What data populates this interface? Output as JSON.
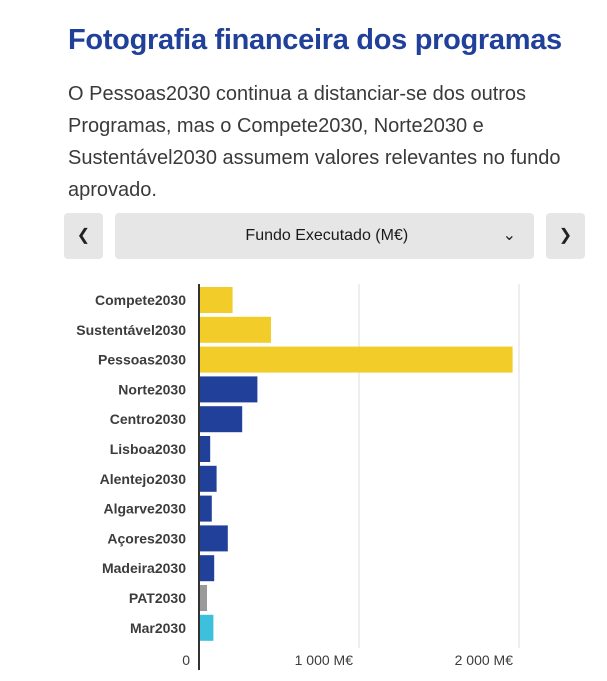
{
  "header": {
    "title": "Fotografia financeira dos programas",
    "subtitle": "O Pessoas2030 continua a distanciar-se dos outros Programas, mas o Compete2030, Norte2030 e Sustentável2030 assumem valores relevantes no fundo aprovado."
  },
  "controls": {
    "prev_icon": "chevron-left-icon",
    "next_icon": "chevron-right-icon",
    "selected_metric": "Fundo Executado (M€)",
    "dropdown_icon": "chevron-down-icon"
  },
  "colors": {
    "title": "#21409a",
    "thematic": "#f2cd2a",
    "regional": "#21409a",
    "pat": "#9a9a9a",
    "mar": "#3cc0dc",
    "grid": "#dcdcdc",
    "axis": "#333333"
  },
  "chart_data": {
    "type": "bar",
    "orientation": "horizontal",
    "title": "Fundo Executado (M€)",
    "xlabel": "",
    "ylabel": "",
    "xlim": [
      0,
      2000
    ],
    "xticks": [
      {
        "value": 0,
        "label": "0"
      },
      {
        "value": 1000,
        "label": "1 000 M€"
      },
      {
        "value": 2000,
        "label": "2 000 M€"
      }
    ],
    "grid": true,
    "categories": [
      "Compete2030",
      "Sustentável2030",
      "Pessoas2030",
      "Norte2030",
      "Centro2030",
      "Lisboa2030",
      "Alentejo2030",
      "Algarve2030",
      "Açores2030",
      "Madeira2030",
      "PAT2030",
      "Mar2030"
    ],
    "values": [
      210,
      450,
      1960,
      365,
      270,
      70,
      110,
      80,
      180,
      95,
      50,
      90
    ],
    "color_groups": [
      "thematic",
      "thematic",
      "thematic",
      "regional",
      "regional",
      "regional",
      "regional",
      "regional",
      "regional",
      "regional",
      "pat",
      "mar"
    ]
  }
}
